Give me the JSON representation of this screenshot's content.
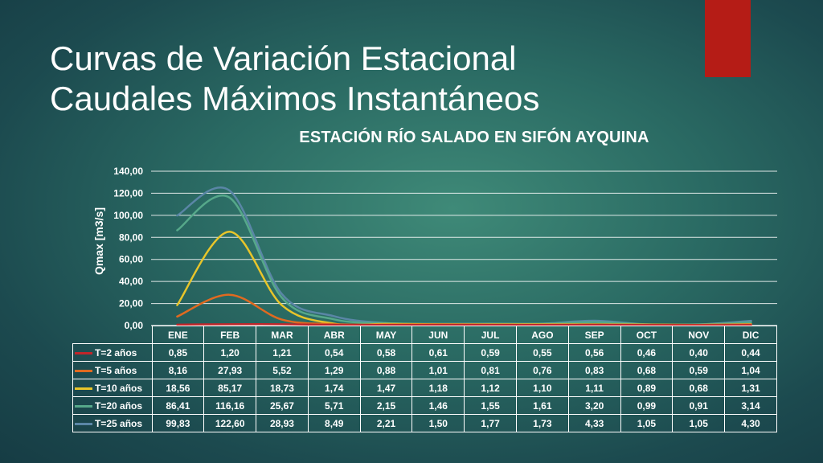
{
  "slide": {
    "title_line1": "Curvas de Variación Estacional",
    "title_line2": "Caudales Máximos Instantáneos",
    "accent_color": "#b51c16"
  },
  "chart_data": {
    "type": "line",
    "title": "ESTACIÓN RÍO SALADO EN SIFÓN AYQUINA",
    "ylabel": "Qmax  [m3/s]",
    "xlabel": "",
    "ylim": [
      0,
      140
    ],
    "yticks": [
      "0,00",
      "20,00",
      "40,00",
      "60,00",
      "80,00",
      "100,00",
      "120,00",
      "140,00"
    ],
    "grid": true,
    "categories": [
      "ENE",
      "FEB",
      "MAR",
      "ABR",
      "MAY",
      "JUN",
      "JUL",
      "AGO",
      "SEP",
      "OCT",
      "NOV",
      "DIC"
    ],
    "series": [
      {
        "name": "T=2 años",
        "color": "#c0262a",
        "values": [
          0.85,
          1.2,
          1.21,
          0.54,
          0.58,
          0.61,
          0.59,
          0.55,
          0.56,
          0.46,
          0.4,
          0.44
        ],
        "labels": [
          "0,85",
          "1,20",
          "1,21",
          "0,54",
          "0,58",
          "0,61",
          "0,59",
          "0,55",
          "0,56",
          "0,46",
          "0,40",
          "0,44"
        ]
      },
      {
        "name": "T=5 años",
        "color": "#e06a20",
        "values": [
          8.16,
          27.93,
          5.52,
          1.29,
          0.88,
          1.01,
          0.81,
          0.76,
          0.83,
          0.68,
          0.59,
          1.04
        ],
        "labels": [
          "8,16",
          "27,93",
          "5,52",
          "1,29",
          "0,88",
          "1,01",
          "0,81",
          "0,76",
          "0,83",
          "0,68",
          "0,59",
          "1,04"
        ]
      },
      {
        "name": "T=10 años",
        "color": "#e8c52a",
        "values": [
          18.56,
          85.17,
          18.73,
          1.74,
          1.47,
          1.18,
          1.12,
          1.1,
          1.11,
          0.89,
          0.68,
          1.31
        ],
        "labels": [
          "18,56",
          "85,17",
          "18,73",
          "1,74",
          "1,47",
          "1,18",
          "1,12",
          "1,10",
          "1,11",
          "0,89",
          "0,68",
          "1,31"
        ]
      },
      {
        "name": "T=20 años",
        "color": "#56a88a",
        "values": [
          86.41,
          116.16,
          25.67,
          5.71,
          2.15,
          1.46,
          1.55,
          1.61,
          3.2,
          0.99,
          0.91,
          3.14
        ],
        "labels": [
          "86,41",
          "116,16",
          "25,67",
          "5,71",
          "2,15",
          "1,46",
          "1,55",
          "1,61",
          "3,20",
          "0,99",
          "0,91",
          "3,14"
        ]
      },
      {
        "name": "T=25 años",
        "color": "#5a86a6",
        "values": [
          99.83,
          122.6,
          28.93,
          8.49,
          2.21,
          1.5,
          1.77,
          1.73,
          4.33,
          1.05,
          1.05,
          4.3
        ],
        "labels": [
          "99,83",
          "122,60",
          "28,93",
          "8,49",
          "2,21",
          "1,50",
          "1,77",
          "1,73",
          "4,33",
          "1,05",
          "1,05",
          "4,30"
        ]
      }
    ]
  }
}
